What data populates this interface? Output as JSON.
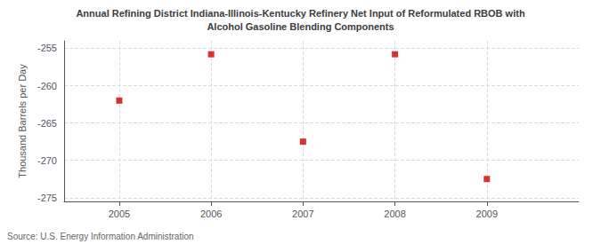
{
  "chart_data": {
    "type": "scatter",
    "title": "Annual Refining District Indiana-Illinois-Kentucky Refinery Net Input of Reformulated RBOB with",
    "subtitle": "Alcohol Gasoline Blending Components",
    "ylabel": "Thousand Barrels per Day",
    "annotation": "Source: U.S. Energy Information Administration",
    "x": [
      2005,
      2006,
      2007,
      2008,
      2009
    ],
    "values": [
      -262.0,
      -255.8,
      -267.5,
      -255.8,
      -272.5
    ],
    "color": "#cc0000",
    "marker": "square",
    "xlim": [
      2004.4,
      2010.0
    ],
    "xticks": [
      2005,
      2006,
      2007,
      2008,
      2009
    ],
    "ylim": [
      -275.5,
      -254.0
    ],
    "yticks": [
      -275,
      -270,
      -265,
      -260,
      -255
    ],
    "grid": true
  }
}
